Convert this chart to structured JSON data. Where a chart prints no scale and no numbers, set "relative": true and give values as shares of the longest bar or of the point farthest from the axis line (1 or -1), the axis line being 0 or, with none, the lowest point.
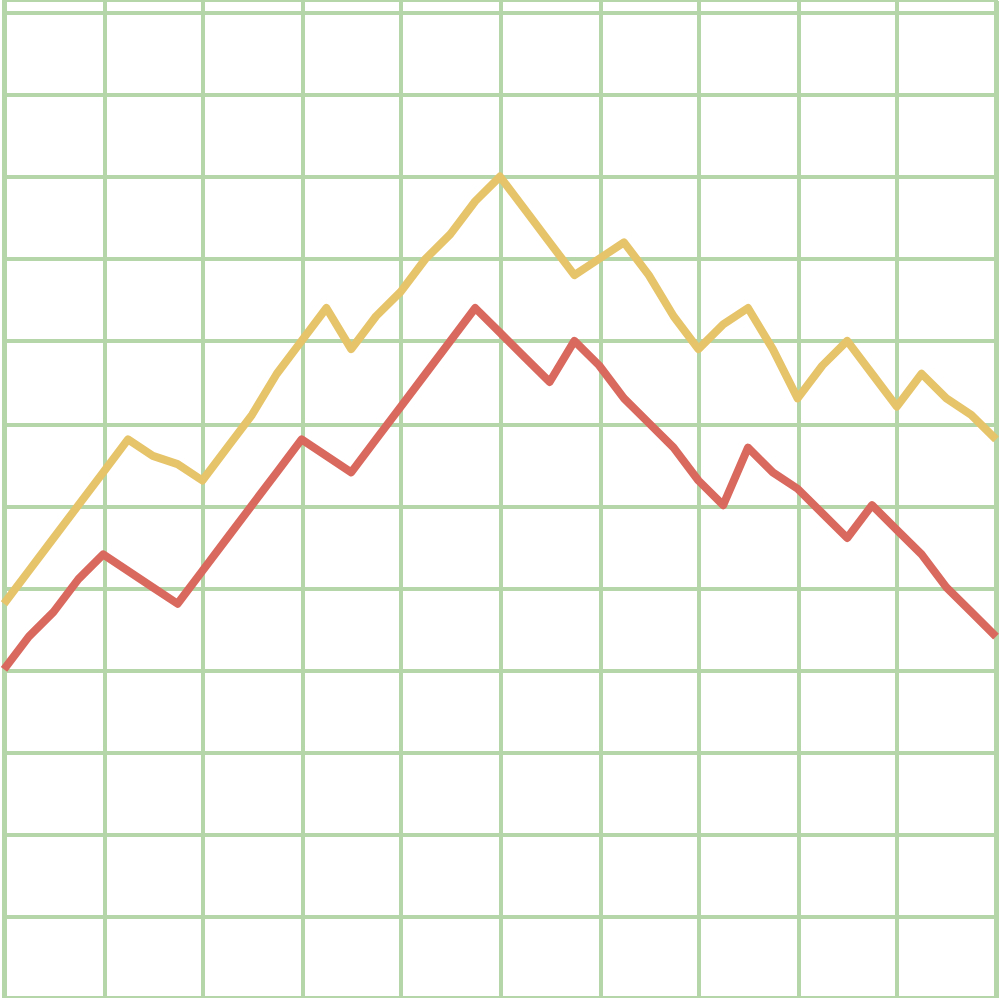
{
  "chart_data": {
    "type": "line",
    "relative": true,
    "grid": true,
    "tick_labels": false,
    "marker": "none",
    "line_style": "solid",
    "categories": [
      null,
      null,
      null,
      null,
      null,
      null,
      null,
      null,
      null,
      null,
      null,
      null,
      null,
      null,
      null,
      null,
      null,
      null,
      null,
      null,
      null,
      null,
      null,
      null,
      null,
      null,
      null,
      null,
      null,
      null,
      null,
      null,
      null,
      null,
      null,
      null,
      null,
      null,
      null,
      null,
      null
    ],
    "series": [
      {
        "color": "#e6c46a",
        "values": [
          0.48,
          0.52,
          0.56,
          0.6,
          0.64,
          0.68,
          0.66,
          0.65,
          0.63,
          0.67,
          0.71,
          0.76,
          0.8,
          0.84,
          0.79,
          0.83,
          0.86,
          0.9,
          0.93,
          0.97,
          1.0,
          0.96,
          0.92,
          0.88,
          0.9,
          0.92,
          0.88,
          0.83,
          0.79,
          0.82,
          0.84,
          0.79,
          0.73,
          0.77,
          0.8,
          0.76,
          0.72,
          0.76,
          0.73,
          0.71,
          0.68
        ]
      },
      {
        "color": "#d9695f",
        "values": [
          0.4,
          0.44,
          0.47,
          0.51,
          0.54,
          0.52,
          0.5,
          0.48,
          0.52,
          0.56,
          0.6,
          0.64,
          0.68,
          0.66,
          0.64,
          0.68,
          0.72,
          0.76,
          0.8,
          0.84,
          0.81,
          0.78,
          0.75,
          0.8,
          0.77,
          0.73,
          0.7,
          0.67,
          0.63,
          0.6,
          0.67,
          0.64,
          0.62,
          0.59,
          0.56,
          0.6,
          0.57,
          0.54,
          0.5,
          0.47,
          0.44
        ]
      }
    ]
  }
}
